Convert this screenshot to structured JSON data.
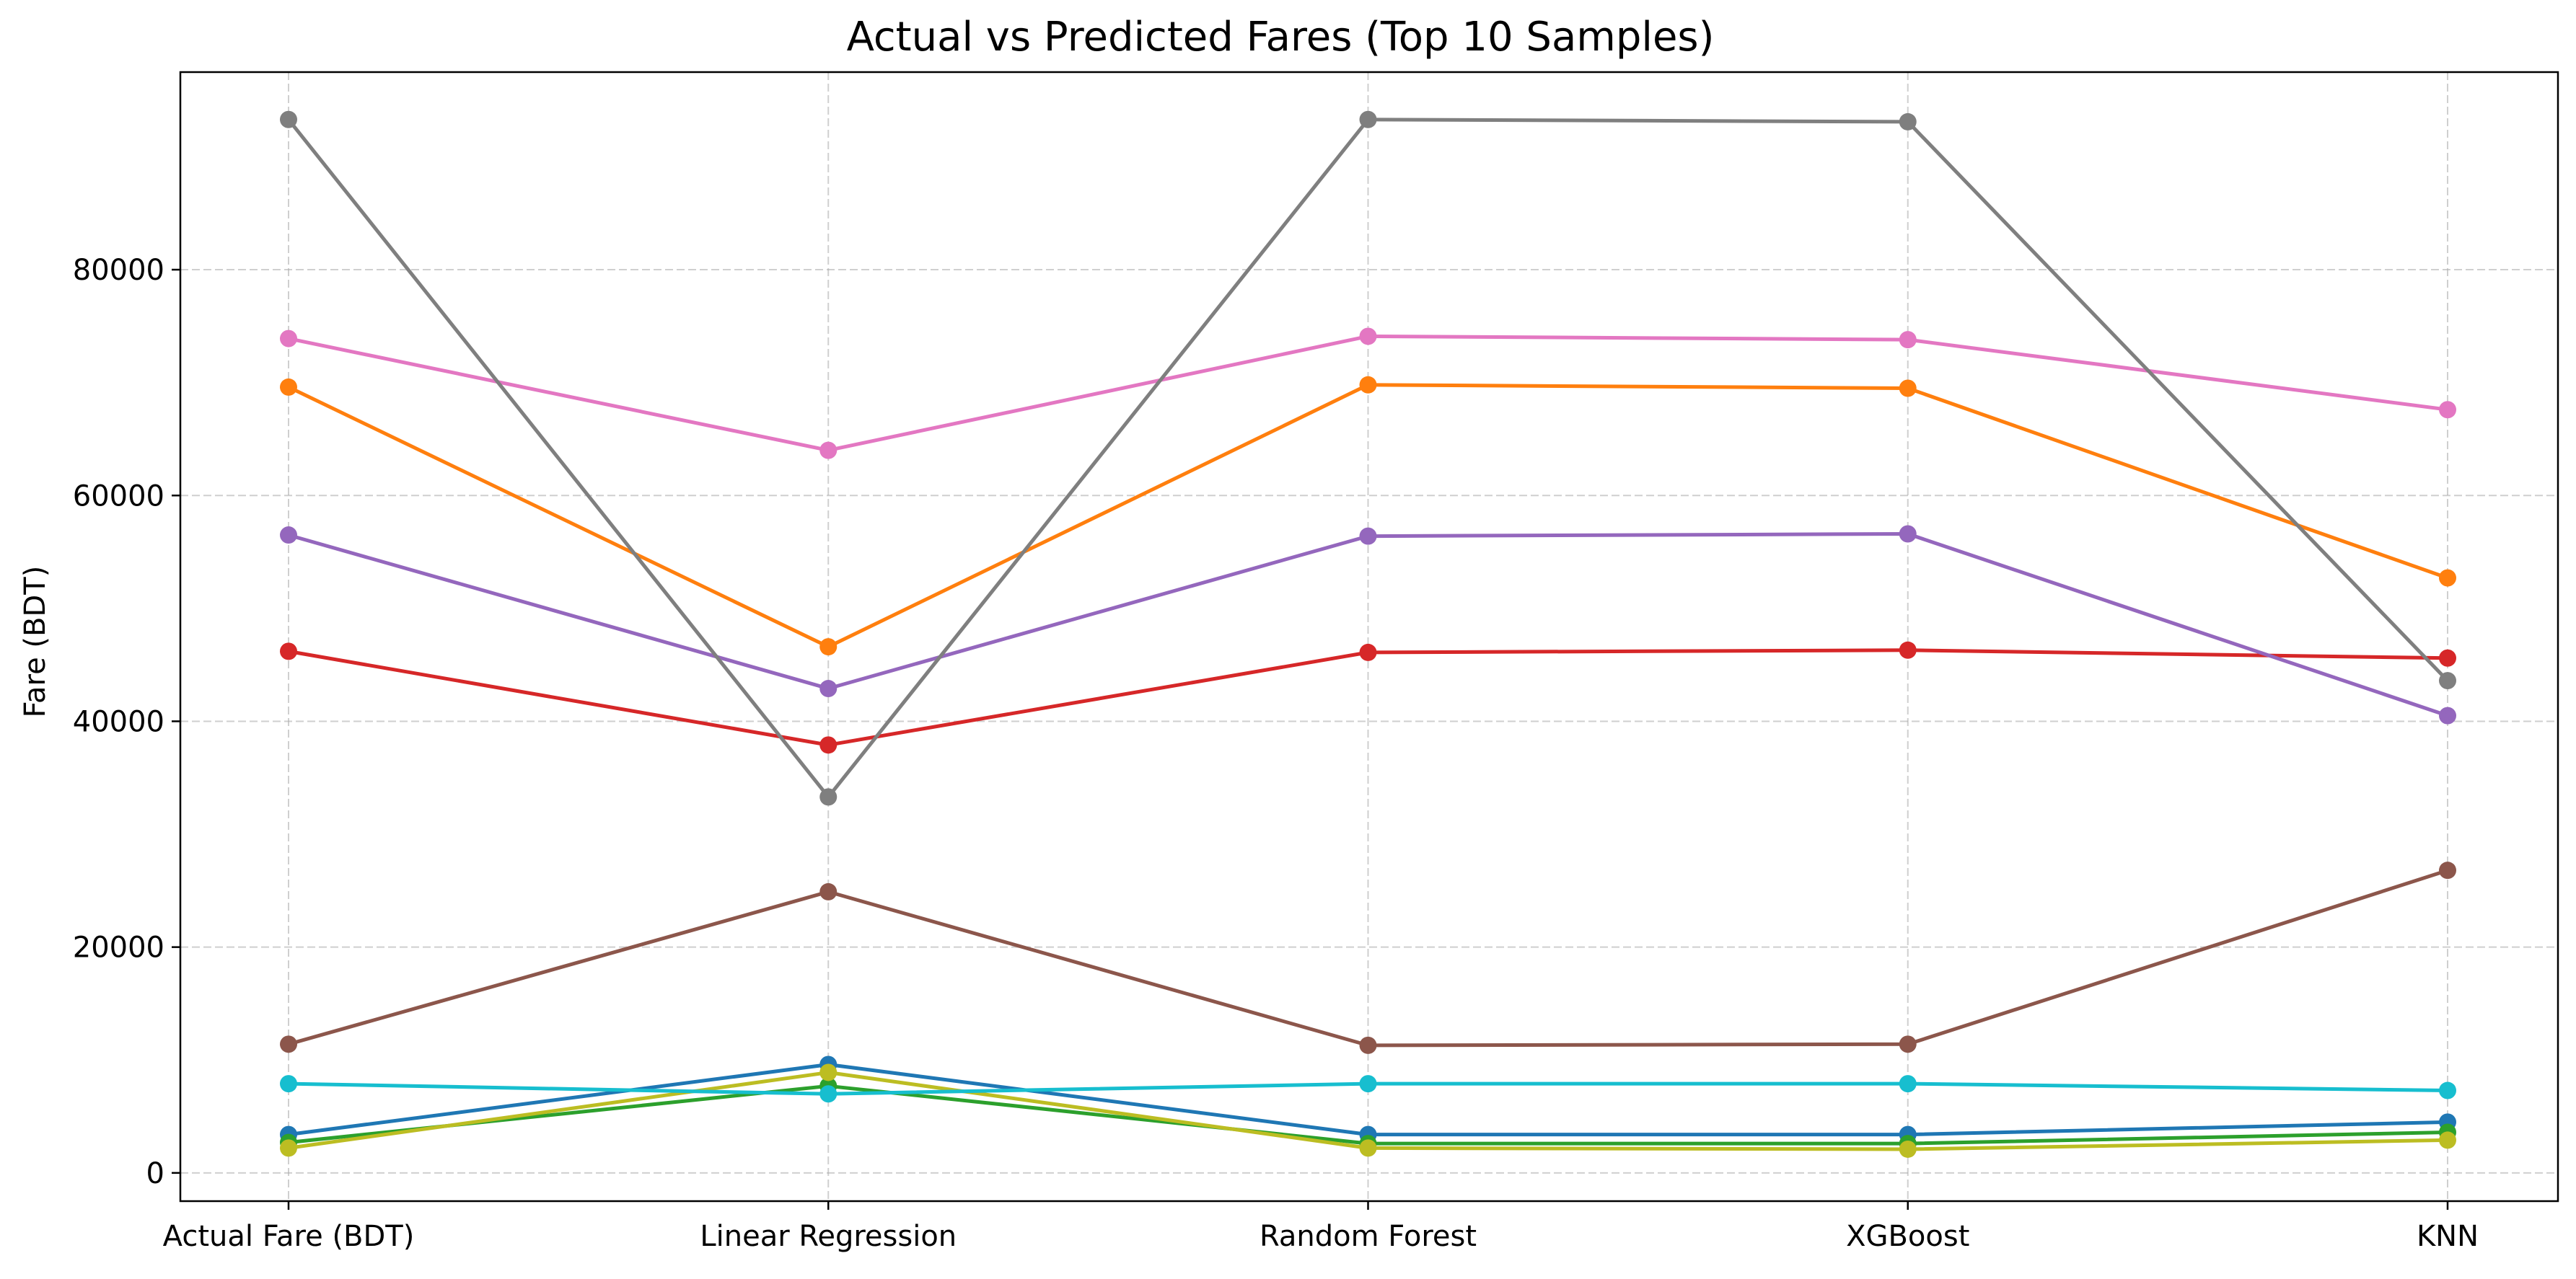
{
  "chart_data": {
    "type": "line",
    "title": "Actual vs Predicted Fares (Top 10 Samples)",
    "xlabel": "",
    "ylabel": "Fare (BDT)",
    "categories": [
      "Actual Fare (BDT)",
      "Linear Regression",
      "Random Forest",
      "XGBoost",
      "KNN"
    ],
    "ylim": [
      -2500,
      97500
    ],
    "yticks": [
      0,
      20000,
      40000,
      60000,
      80000
    ],
    "grid": true,
    "legend": "none",
    "marker": "circle",
    "series": [
      {
        "color": "#1f77b4",
        "values": [
          3400,
          9600,
          3400,
          3400,
          4500
        ]
      },
      {
        "color": "#ff7f0e",
        "values": [
          69600,
          46600,
          69800,
          69500,
          52700
        ]
      },
      {
        "color": "#2ca02c",
        "values": [
          2700,
          7700,
          2600,
          2600,
          3600
        ]
      },
      {
        "color": "#d62728",
        "values": [
          46200,
          37900,
          46100,
          46300,
          45600
        ]
      },
      {
        "color": "#9467bd",
        "values": [
          56500,
          42900,
          56400,
          56600,
          40500
        ]
      },
      {
        "color": "#8c564b",
        "values": [
          11400,
          24900,
          11300,
          11400,
          26800
        ]
      },
      {
        "color": "#e377c2",
        "values": [
          73900,
          64000,
          74100,
          73800,
          67600
        ]
      },
      {
        "color": "#7f7f7f",
        "values": [
          93300,
          33300,
          93300,
          93100,
          43600
        ]
      },
      {
        "color": "#bcbd22",
        "values": [
          2200,
          8900,
          2200,
          2100,
          2900
        ]
      },
      {
        "color": "#17becf",
        "values": [
          7900,
          7000,
          7900,
          7900,
          7300
        ]
      }
    ]
  }
}
